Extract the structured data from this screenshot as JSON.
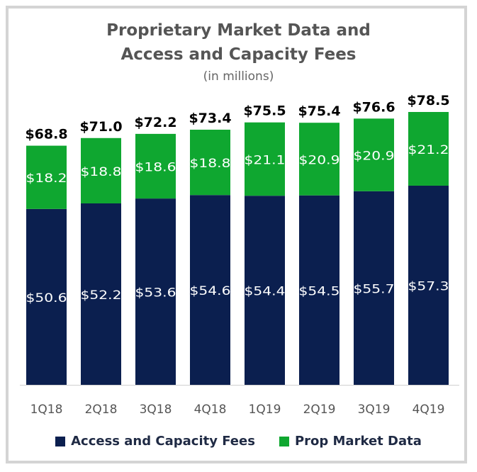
{
  "chart_data": {
    "type": "bar",
    "stacked": true,
    "title": "Proprietary Market Data and Access and Capacity Fees",
    "title_lines": [
      "Proprietary Market Data and",
      "Access and Capacity Fees"
    ],
    "subtitle": "(in millions)",
    "categories": [
      "1Q18",
      "2Q18",
      "3Q18",
      "4Q18",
      "1Q19",
      "2Q19",
      "3Q19",
      "4Q19"
    ],
    "series": [
      {
        "name": "Access and Capacity Fees",
        "color": "#0b1f4f",
        "values": [
          50.6,
          52.2,
          53.6,
          54.6,
          54.4,
          54.5,
          55.7,
          57.3
        ],
        "labels": [
          "$50.6",
          "$52.2",
          "$53.6",
          "$54.6",
          "$54.4",
          "$54.5",
          "$55.7",
          "$57.3"
        ]
      },
      {
        "name": "Prop Market Data",
        "color": "#0fa730",
        "values": [
          18.2,
          18.8,
          18.6,
          18.8,
          21.1,
          20.9,
          20.9,
          21.2
        ],
        "labels": [
          "$18.2",
          "$18.8",
          "$18.6",
          "$18.8",
          "$21.1",
          "$20.9",
          "$20.9",
          "$21.2"
        ]
      }
    ],
    "totals": [
      68.8,
      71.0,
      72.2,
      73.4,
      75.5,
      75.4,
      76.6,
      78.5
    ],
    "total_labels": [
      "$68.8",
      "$71.0",
      "$72.2",
      "$73.4",
      "$75.5",
      "$75.4",
      "$76.6",
      "$78.5"
    ],
    "ylim": [
      0,
      78.5
    ],
    "grid": false,
    "legend_position": "bottom"
  }
}
